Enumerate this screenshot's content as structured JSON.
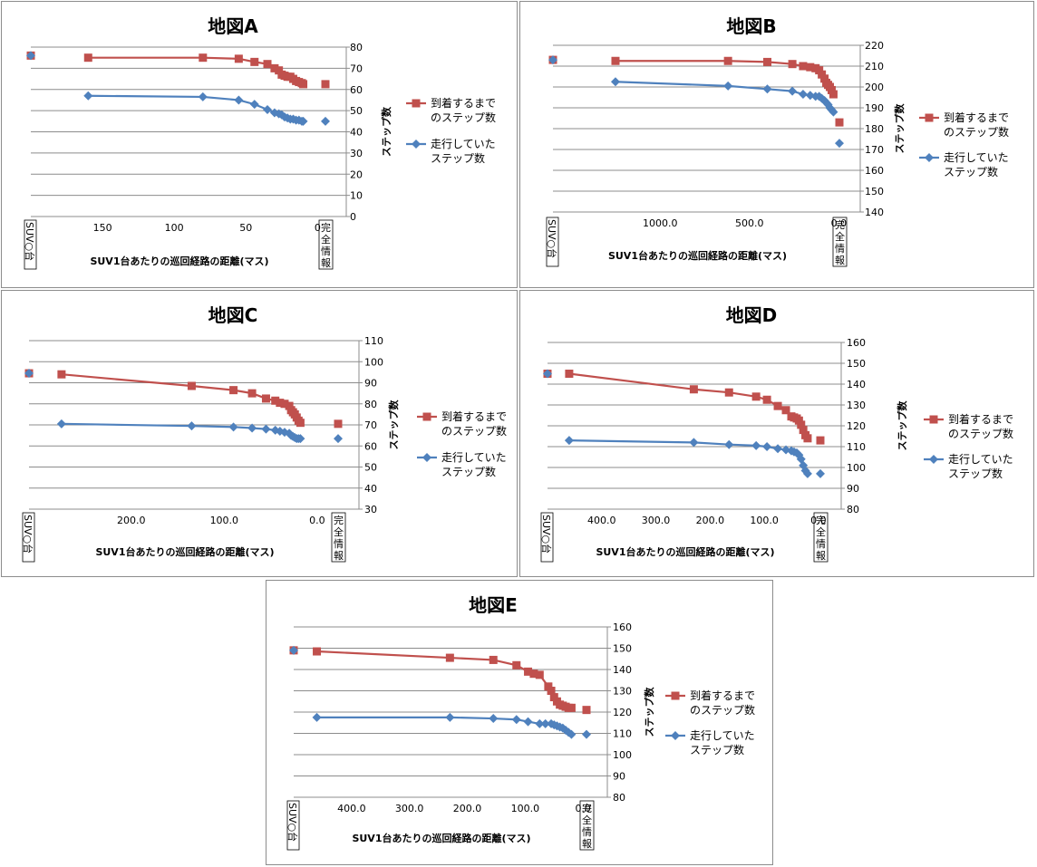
{
  "legend": {
    "arrival_line1": "到着するまで",
    "arrival_line2": "のステップ数",
    "moving_line1": "走行していた",
    "moving_line2": "ステップ数"
  },
  "colors": {
    "arrival": "#c0504d",
    "moving": "#4f81bd"
  },
  "left_category": "SUV○台",
  "right_category": "完全情報",
  "chart_data": [
    {
      "type": "line",
      "title": "地図A",
      "xlabel": "SUV1台あたりの巡回経路の距離(マス)",
      "ylabel": "ステップ数",
      "xlim": [
        200,
        -20
      ],
      "x_ticks": [
        150,
        100,
        50,
        0
      ],
      "x_tick_labels": [
        "150",
        "100",
        "50",
        "0"
      ],
      "ylim": [
        0,
        80
      ],
      "y_ticks": [
        0,
        10,
        20,
        30,
        40,
        50,
        60,
        70,
        80
      ],
      "series": [
        {
          "name": "到着するまでのステップ数",
          "left_value": 76,
          "right_value": 62.5,
          "x": [
            160,
            80,
            55,
            44,
            35,
            30,
            27,
            25,
            23,
            21,
            19,
            17,
            15,
            13,
            11,
            10
          ],
          "values": [
            75,
            75,
            74.5,
            73,
            72,
            70,
            69,
            67,
            66.5,
            66,
            66,
            65,
            64,
            63.5,
            63,
            62.5
          ]
        },
        {
          "name": "走行していたステップ数",
          "left_value": 76,
          "right_value": 45,
          "x": [
            160,
            80,
            55,
            44,
            35,
            30,
            27,
            25,
            23,
            21,
            19,
            17,
            15,
            13,
            11,
            10
          ],
          "values": [
            57,
            56.5,
            55,
            53,
            50.5,
            49,
            48.5,
            48,
            47,
            46.5,
            46,
            46,
            45.5,
            45.5,
            45,
            45
          ]
        }
      ]
    },
    {
      "type": "line",
      "title": "地図B",
      "xlabel": "SUV1台あたりの巡回経路の距離(マス)",
      "ylabel": "ステップ数",
      "xlim": [
        1600,
        -120
      ],
      "x_ticks": [
        1000,
        500,
        0
      ],
      "x_tick_labels": [
        "1000.0",
        "500.0",
        "0.0"
      ],
      "ylim": [
        140,
        220
      ],
      "y_ticks": [
        140,
        150,
        160,
        170,
        180,
        190,
        200,
        210,
        220
      ],
      "series": [
        {
          "name": "到着するまでのステップ数",
          "left_value": 213,
          "right_value": 183,
          "x": [
            1250,
            620,
            400,
            260,
            200,
            160,
            130,
            110,
            95,
            80,
            70,
            60,
            50,
            40,
            30
          ],
          "values": [
            212.5,
            212.5,
            212,
            211,
            210,
            209.5,
            209,
            208,
            206,
            204,
            202,
            201,
            200,
            198.5,
            196.5
          ]
        },
        {
          "name": "走行していたステップ数",
          "left_value": 213,
          "right_value": 173,
          "x": [
            1250,
            620,
            400,
            260,
            200,
            160,
            130,
            110,
            95,
            80,
            70,
            60,
            50,
            40,
            30
          ],
          "values": [
            202.5,
            200.5,
            199,
            198,
            196.5,
            196,
            195.5,
            195.5,
            194.5,
            193.5,
            192.5,
            191.5,
            190,
            189,
            188
          ]
        }
      ]
    },
    {
      "type": "line",
      "title": "地図C",
      "xlabel": "SUV1台あたりの巡回経路の距離(マス)",
      "ylabel": "ステップ数",
      "xlim": [
        310,
        -45
      ],
      "x_ticks": [
        200,
        100,
        0
      ],
      "x_tick_labels": [
        "200.0",
        "100.0",
        "0.0"
      ],
      "ylim": [
        30,
        110
      ],
      "y_ticks": [
        30,
        40,
        50,
        60,
        70,
        80,
        90,
        100,
        110
      ],
      "series": [
        {
          "name": "到着するまでのステップ数",
          "left_value": 94.5,
          "right_value": 70.5,
          "x": [
            275,
            135,
            90,
            70,
            55,
            45,
            40,
            35,
            30,
            28,
            26,
            24,
            22,
            20,
            18
          ],
          "values": [
            94,
            88.5,
            86.5,
            85,
            82.5,
            81.5,
            80.5,
            80,
            79,
            77,
            76,
            75,
            73.5,
            72,
            71
          ]
        },
        {
          "name": "走行していたステップ数",
          "left_value": 94.5,
          "right_value": 63.5,
          "x": [
            275,
            135,
            90,
            70,
            55,
            45,
            40,
            35,
            30,
            28,
            26,
            24,
            22,
            20,
            18
          ],
          "values": [
            70.5,
            69.5,
            69,
            68.5,
            68,
            67.5,
            67,
            66.5,
            66,
            65,
            64.5,
            64,
            63.5,
            63.5,
            63.5
          ]
        }
      ]
    },
    {
      "type": "line",
      "title": "地図D",
      "xlabel": "SUV1台あたりの巡回経路の距離(マス)",
      "ylabel": "ステップ数",
      "xlim": [
        500,
        -42
      ],
      "x_ticks": [
        400,
        300,
        200,
        100,
        0
      ],
      "x_tick_labels": [
        "400.0",
        "300.0",
        "200.0",
        "100.0",
        "0.0"
      ],
      "ylim": [
        80,
        160
      ],
      "y_ticks": [
        80,
        90,
        100,
        110,
        120,
        130,
        140,
        150,
        160
      ],
      "series": [
        {
          "name": "到着するまでのステップ数",
          "left_value": 145,
          "right_value": 113,
          "x": [
            460,
            230,
            165,
            115,
            95,
            75,
            60,
            50,
            45,
            40,
            36,
            32,
            28,
            24,
            20
          ],
          "values": [
            145,
            137.5,
            136,
            134,
            132.5,
            129.5,
            127.5,
            124.5,
            124,
            123.5,
            122.5,
            120.5,
            118,
            115.5,
            114
          ]
        },
        {
          "name": "走行していたステップ数",
          "left_value": 145,
          "right_value": 97,
          "x": [
            460,
            230,
            165,
            115,
            95,
            75,
            60,
            50,
            45,
            40,
            36,
            32,
            28,
            24,
            20
          ],
          "values": [
            113,
            112,
            111,
            110.5,
            110,
            109,
            108.5,
            108,
            107.5,
            107,
            106,
            104,
            101,
            98.5,
            97
          ]
        }
      ]
    },
    {
      "type": "line",
      "title": "地図E",
      "xlabel": "SUV1台あたりの巡回経路の距離(マス)",
      "ylabel": "ステップ数",
      "xlim": [
        500,
        -42
      ],
      "x_ticks": [
        400,
        300,
        200,
        100,
        0
      ],
      "x_tick_labels": [
        "400.0",
        "300.0",
        "200.0",
        "100.0",
        "0.0"
      ],
      "ylim": [
        80,
        160
      ],
      "y_ticks": [
        80,
        90,
        100,
        110,
        120,
        130,
        140,
        150,
        160
      ],
      "series": [
        {
          "name": "到着するまでのステップ数",
          "left_value": 149,
          "right_value": 121,
          "x": [
            460,
            230,
            155,
            115,
            95,
            85,
            75,
            60,
            55,
            50,
            45,
            40,
            35,
            30,
            25,
            20
          ],
          "values": [
            148.5,
            145.5,
            144.5,
            142,
            139,
            138,
            137.5,
            132,
            130,
            127,
            125,
            123.5,
            123,
            122.5,
            122,
            122
          ]
        },
        {
          "name": "走行していたステップ数",
          "left_value": 149,
          "right_value": 109.5,
          "x": [
            460,
            230,
            155,
            115,
            95,
            75,
            65,
            55,
            50,
            45,
            40,
            35,
            30,
            25,
            20
          ],
          "values": [
            117.5,
            117.5,
            117,
            116.5,
            115.5,
            114.5,
            114.5,
            114.5,
            114,
            113.5,
            113,
            112.5,
            111.5,
            110.5,
            109.5
          ]
        }
      ]
    }
  ]
}
